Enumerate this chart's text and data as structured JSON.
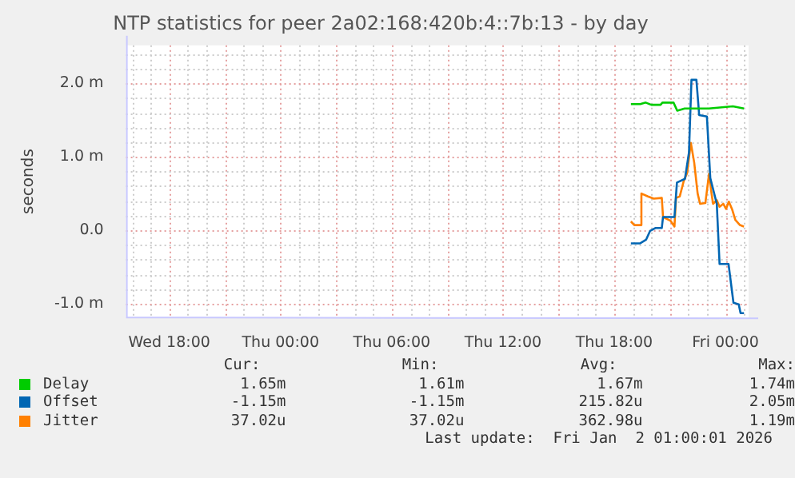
{
  "chart_data": {
    "type": "line",
    "title": "NTP statistics for peer 2a02:168:420b:4::7b:13 - by day",
    "ylabel": "seconds",
    "xlim": [
      "2025-12-31T15:40",
      "2026-01-02T01:15"
    ],
    "xticks": [
      {
        "value": "2025-12-31T18:00",
        "label": "Wed 18:00"
      },
      {
        "value": "2026-01-01T00:00",
        "label": "Thu 00:00"
      },
      {
        "value": "2026-01-01T06:00",
        "label": "Thu 06:00"
      },
      {
        "value": "2026-01-01T12:00",
        "label": "Thu 12:00"
      },
      {
        "value": "2026-01-01T18:00",
        "label": "Thu 18:00"
      },
      {
        "value": "2026-01-02T00:00",
        "label": "Fri 00:00"
      }
    ],
    "ylim": [
      -1.19,
      2.52
    ],
    "yticks": [
      {
        "value": -1,
        "label": "-1.0 m"
      },
      {
        "value": 0,
        "label": "0.0"
      },
      {
        "value": 1,
        "label": "1.0 m"
      },
      {
        "value": 2,
        "label": "2.0 m"
      }
    ],
    "grid": true,
    "legend": "bottom",
    "marker": "none",
    "line_style": "solid",
    "series": [
      {
        "name": "Delay",
        "color": "#00cc00",
        "x": [
          "2026-01-01T18:54",
          "2026-01-01T19:24",
          "2026-01-01T19:42",
          "2026-01-01T20:00",
          "2026-01-01T20:30",
          "2026-01-01T20:36",
          "2026-01-01T21:12",
          "2026-01-01T21:24",
          "2026-01-01T21:48",
          "2026-01-01T23:06",
          "2026-01-02T00:24",
          "2026-01-02T01:00"
        ],
        "values": [
          1.72,
          1.72,
          1.74,
          1.71,
          1.71,
          1.74,
          1.74,
          1.63,
          1.66,
          1.66,
          1.69,
          1.66
        ]
      },
      {
        "name": "Offset",
        "color": "#0066b3",
        "x": [
          "2026-01-01T18:54",
          "2026-01-01T19:23",
          "2026-01-01T19:43",
          "2026-01-01T19:56",
          "2026-01-01T20:13",
          "2026-01-01T20:34",
          "2026-01-01T20:38",
          "2026-01-01T21:15",
          "2026-01-01T21:23",
          "2026-01-01T21:49",
          "2026-01-01T22:02",
          "2026-01-01T22:10",
          "2026-01-01T22:26",
          "2026-01-01T22:35",
          "2026-01-01T23:00",
          "2026-01-01T23:11",
          "2026-01-01T23:32",
          "2026-01-01T23:41",
          "2026-01-02T00:10",
          "2026-01-02T00:26",
          "2026-01-02T00:43",
          "2026-01-02T00:49",
          "2026-01-02T01:00"
        ],
        "values": [
          -0.18,
          -0.18,
          -0.13,
          -0.01,
          0.03,
          0.03,
          0.18,
          0.18,
          0.65,
          0.7,
          1.06,
          2.05,
          2.05,
          1.57,
          1.55,
          0.71,
          0.36,
          -0.46,
          -0.46,
          -0.99,
          -1.01,
          -1.13,
          -1.13
        ]
      },
      {
        "name": "Jitter",
        "color": "#ff8000",
        "x": [
          "2026-01-01T18:54",
          "2026-01-01T19:05",
          "2026-01-01T19:23",
          "2026-01-01T19:28",
          "2026-01-01T19:49",
          "2026-01-01T20:08",
          "2026-01-01T20:34",
          "2026-01-01T20:38",
          "2026-01-01T21:02",
          "2026-01-01T21:15",
          "2026-01-01T21:20",
          "2026-01-01T21:32",
          "2026-01-01T21:45",
          "2026-01-01T21:56",
          "2026-01-01T22:08",
          "2026-01-01T22:19",
          "2026-01-01T22:30",
          "2026-01-01T22:38",
          "2026-01-01T22:55",
          "2026-01-01T23:07",
          "2026-01-01T23:15",
          "2026-01-01T23:20",
          "2026-01-01T23:32",
          "2026-01-01T23:41",
          "2026-01-01T23:53",
          "2026-01-02T00:02",
          "2026-01-02T00:11",
          "2026-01-02T00:22",
          "2026-01-02T00:32",
          "2026-01-02T00:47",
          "2026-01-02T01:00"
        ],
        "values": [
          0.12,
          0.07,
          0.07,
          0.5,
          0.46,
          0.43,
          0.44,
          0.18,
          0.13,
          0.05,
          0.44,
          0.46,
          0.67,
          0.78,
          1.19,
          0.92,
          0.5,
          0.36,
          0.37,
          0.77,
          0.5,
          0.36,
          0.41,
          0.32,
          0.36,
          0.29,
          0.39,
          0.28,
          0.14,
          0.07,
          0.05
        ]
      }
    ],
    "annotations": [
      "Cur:",
      "Min:",
      "Avg:",
      "Max:",
      "1.65m",
      "1.61m",
      "1.67m",
      "1.74m",
      "-1.15m",
      "-1.15m",
      "215.82u",
      "2.05m",
      "37.02u",
      "37.02u",
      "362.98u",
      "1.19m",
      "Last update:  Fri Jan  2 01:00:01 2026"
    ]
  }
}
